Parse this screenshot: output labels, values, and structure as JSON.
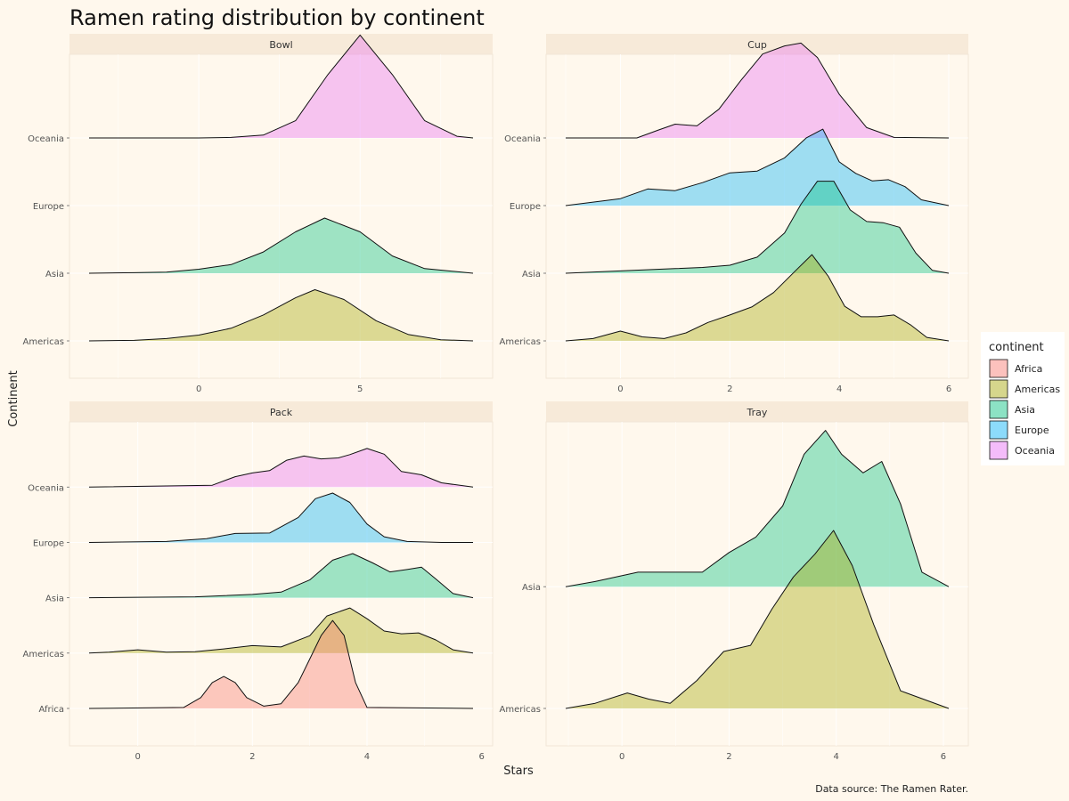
{
  "colors": {
    "background": "#fff8ed",
    "strip": "#f7ead9",
    "grid": "#ffffff",
    "Africa": "#f8766d",
    "Americas": "#a3a500",
    "Asia": "#00bf7d",
    "Europe": "#00b0f6",
    "Oceania": "#e76bf3"
  },
  "caption": "Data source: The Ramen Rater.",
  "chart_data": {
    "type": "ridgeline",
    "title": "Ramen rating distribution by continent",
    "xlabel": "Stars",
    "ylabel": "Continent",
    "legend": {
      "title": "continent",
      "placement": "right",
      "entries": [
        "Africa",
        "Americas",
        "Asia",
        "Europe",
        "Oceania"
      ]
    },
    "panels": [
      {
        "name": "Bowl",
        "xlim": [
          -3.4,
          8.5
        ],
        "xticks": [
          0,
          5
        ],
        "categories": [
          "Americas",
          "Asia",
          "Europe",
          "Oceania"
        ],
        "series": [
          {
            "name": "Americas",
            "baseline": 1,
            "x": [
              -3.4,
              -2,
              -1,
              0,
              1,
              2,
              3,
              3.6,
              4.5,
              5.5,
              6.5,
              7.5,
              8.5
            ],
            "y": [
              0.0,
              0.01,
              0.04,
              0.1,
              0.22,
              0.45,
              0.75,
              0.89,
              0.72,
              0.35,
              0.11,
              0.02,
              0.0
            ]
          },
          {
            "name": "Asia",
            "baseline": 2,
            "x": [
              -3.4,
              -2,
              -1,
              0,
              1,
              2,
              3,
              3.9,
              5,
              6,
              7,
              8.5
            ],
            "y": [
              0.0,
              0.01,
              0.02,
              0.07,
              0.15,
              0.37,
              0.72,
              0.96,
              0.72,
              0.3,
              0.08,
              0.0
            ]
          },
          {
            "name": "Oceania",
            "baseline": 4,
            "x": [
              -3.4,
              0,
              1,
              2,
              3,
              4,
              5,
              6,
              7,
              8,
              8.5
            ],
            "y": [
              0.0,
              0.0,
              0.01,
              0.05,
              0.3,
              1.1,
              1.79,
              1.1,
              0.3,
              0.03,
              0.0
            ]
          }
        ]
      },
      {
        "name": "Cup",
        "xlim": [
          -1,
          6
        ],
        "xticks": [
          0,
          2,
          4,
          6
        ],
        "categories": [
          "Americas",
          "Asia",
          "Europe",
          "Oceania"
        ],
        "series": [
          {
            "name": "Americas",
            "baseline": 1,
            "x": [
              -1,
              -0.5,
              0,
              0.4,
              0.8,
              1.2,
              1.6,
              2,
              2.4,
              2.8,
              3.2,
              3.5,
              3.8,
              4.1,
              4.4,
              4.7,
              5,
              5.3,
              5.6,
              6
            ],
            "y": [
              0.0,
              0.04,
              0.17,
              0.07,
              0.04,
              0.14,
              0.32,
              0.45,
              0.59,
              0.84,
              1.22,
              1.5,
              1.12,
              0.6,
              0.42,
              0.42,
              0.45,
              0.28,
              0.06,
              0.0
            ]
          },
          {
            "name": "Asia",
            "baseline": 2,
            "x": [
              -1,
              0,
              1,
              1.5,
              2,
              2.5,
              3,
              3.3,
              3.6,
              3.9,
              4.2,
              4.5,
              4.8,
              5.1,
              5.4,
              5.7,
              6
            ],
            "y": [
              0.0,
              0.04,
              0.08,
              0.1,
              0.14,
              0.28,
              0.7,
              1.2,
              1.6,
              1.6,
              1.1,
              0.9,
              0.88,
              0.8,
              0.35,
              0.05,
              0.0
            ]
          },
          {
            "name": "Europe",
            "baseline": 3,
            "x": [
              -1,
              0,
              0.5,
              1,
              1.5,
              2,
              2.5,
              3,
              3.4,
              3.7,
              4,
              4.3,
              4.6,
              4.9,
              5.2,
              5.5,
              6
            ],
            "y": [
              0.0,
              0.12,
              0.29,
              0.26,
              0.4,
              0.57,
              0.6,
              0.83,
              1.18,
              1.33,
              0.76,
              0.56,
              0.43,
              0.45,
              0.33,
              0.1,
              0.0
            ]
          },
          {
            "name": "Oceania",
            "baseline": 4,
            "x": [
              -1,
              0.3,
              0.7,
              1,
              1.4,
              1.8,
              2.2,
              2.6,
              3,
              3.3,
              3.6,
              4,
              4.5,
              5,
              6
            ],
            "y": [
              0.0,
              0.0,
              0.14,
              0.24,
              0.21,
              0.5,
              1.0,
              1.46,
              1.6,
              1.65,
              1.4,
              0.76,
              0.18,
              0.01,
              0.0
            ]
          }
        ]
      },
      {
        "name": "Pack",
        "xlim": [
          -0.85,
          5.85
        ],
        "xticks": [
          0,
          2,
          4,
          6
        ],
        "categories": [
          "Africa",
          "Americas",
          "Asia",
          "Europe",
          "Oceania"
        ],
        "series": [
          {
            "name": "Africa",
            "baseline": 1,
            "x": [
              -0.85,
              0.8,
              1.1,
              1.3,
              1.5,
              1.7,
              1.9,
              2.2,
              2.5,
              2.8,
              3,
              3.2,
              3.4,
              3.6,
              3.8,
              4,
              5.85
            ],
            "y": [
              0.0,
              0.02,
              0.23,
              0.55,
              0.68,
              0.55,
              0.23,
              0.05,
              0.1,
              0.55,
              1.05,
              1.55,
              1.87,
              1.55,
              0.55,
              0.02,
              0.0
            ]
          },
          {
            "name": "Americas",
            "baseline": 2,
            "x": [
              -0.85,
              -0.5,
              0,
              0.5,
              1,
              1.5,
              2,
              2.5,
              3,
              3.3,
              3.7,
              4,
              4.3,
              4.6,
              4.9,
              5.2,
              5.5,
              5.85
            ],
            "y": [
              0.0,
              0.02,
              0.07,
              0.02,
              0.03,
              0.09,
              0.16,
              0.13,
              0.37,
              0.79,
              0.96,
              0.73,
              0.47,
              0.41,
              0.43,
              0.28,
              0.07,
              0.0
            ]
          },
          {
            "name": "Asia",
            "baseline": 3,
            "x": [
              -0.85,
              0,
              1,
              2,
              2.5,
              3,
              3.4,
              3.75,
              4.1,
              4.4,
              4.7,
              4.95,
              5.2,
              5.5,
              5.85
            ],
            "y": [
              0.0,
              0.01,
              0.02,
              0.07,
              0.12,
              0.38,
              0.8,
              0.94,
              0.74,
              0.55,
              0.6,
              0.65,
              0.4,
              0.09,
              0.0
            ]
          },
          {
            "name": "Europe",
            "baseline": 4,
            "x": [
              -0.85,
              0.5,
              1.2,
              1.7,
              2.3,
              2.8,
              3.1,
              3.4,
              3.7,
              4,
              4.3,
              4.7,
              5.3,
              5.85
            ],
            "y": [
              0.0,
              0.02,
              0.08,
              0.19,
              0.2,
              0.53,
              0.93,
              1.05,
              0.85,
              0.39,
              0.12,
              0.02,
              0.0,
              0.0
            ]
          },
          {
            "name": "Oceania",
            "baseline": 5,
            "x": [
              -0.85,
              1.3,
              1.7,
              2,
              2.3,
              2.6,
              2.9,
              3.2,
              3.5,
              3.7,
              4,
              4.3,
              4.6,
              4.95,
              5.3,
              5.85
            ],
            "y": [
              0.0,
              0.04,
              0.22,
              0.3,
              0.35,
              0.57,
              0.66,
              0.6,
              0.62,
              0.69,
              0.82,
              0.7,
              0.33,
              0.26,
              0.09,
              0.0
            ]
          }
        ]
      },
      {
        "name": "Tray",
        "xlim": [
          -1.05,
          6.1
        ],
        "xticks": [
          0,
          2,
          4,
          6
        ],
        "categories": [
          "Americas",
          "Asia"
        ],
        "series": [
          {
            "name": "Americas",
            "baseline": 1,
            "x": [
              -1.05,
              -0.5,
              0.1,
              0.5,
              0.9,
              1.4,
              1.9,
              2.4,
              2.8,
              3.2,
              3.6,
              3.95,
              4.3,
              4.7,
              5.2,
              6.1
            ],
            "y": [
              0.0,
              0.05,
              0.15,
              0.09,
              0.05,
              0.27,
              0.55,
              0.61,
              0.96,
              1.27,
              1.49,
              1.72,
              1.38,
              0.81,
              0.17,
              0.0
            ]
          },
          {
            "name": "Asia",
            "baseline": 2,
            "x": [
              -1.05,
              -0.5,
              0.3,
              0.8,
              1.5,
              2,
              2.5,
              3,
              3.4,
              3.8,
              4.1,
              4.5,
              4.85,
              5.2,
              5.6,
              6.1
            ],
            "y": [
              0.0,
              0.05,
              0.14,
              0.14,
              0.14,
              0.33,
              0.48,
              0.78,
              1.28,
              1.51,
              1.28,
              1.1,
              1.21,
              0.8,
              0.14,
              0.0
            ]
          }
        ]
      }
    ]
  }
}
